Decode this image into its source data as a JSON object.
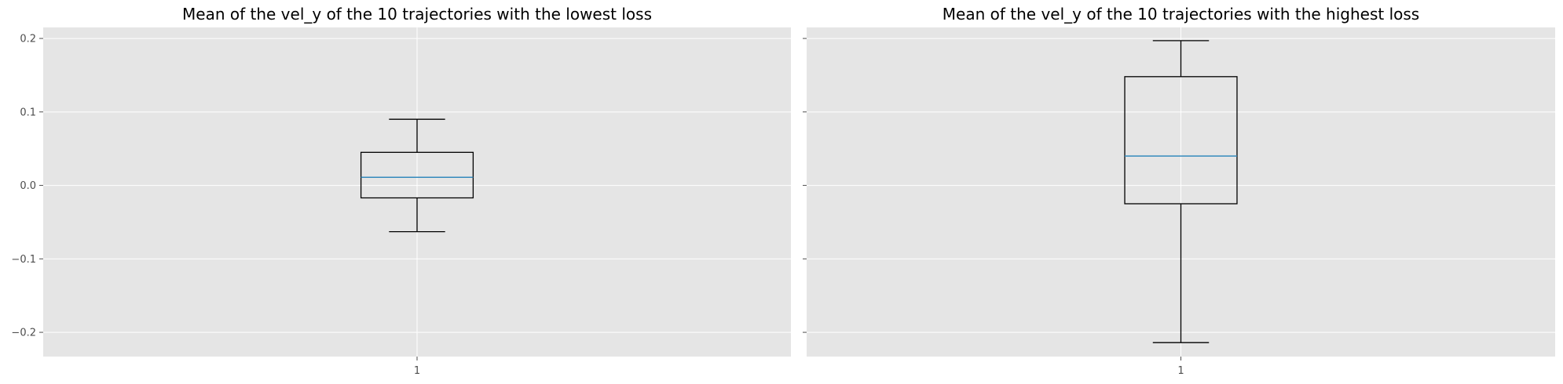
{
  "chart_data": [
    {
      "type": "box",
      "title": "Mean of the vel_y of the 10 trajectories with the lowest loss",
      "categories": [
        "1"
      ],
      "ylim": [
        -0.233,
        0.215
      ],
      "yticks": [
        -0.2,
        -0.1,
        0.0,
        0.1,
        0.2
      ],
      "ytick_labels": [
        "−0.2",
        "−0.1",
        "0.0",
        "0.1",
        "0.2"
      ],
      "show_ytick_labels": true,
      "grid": true,
      "boxes": [
        {
          "whisker_low": -0.063,
          "q1": -0.017,
          "median": 0.011,
          "q3": 0.045,
          "whisker_high": 0.09
        }
      ]
    },
    {
      "type": "box",
      "title": "Mean of the vel_y of the 10 trajectories with the highest loss",
      "categories": [
        "1"
      ],
      "ylim": [
        -0.233,
        0.215
      ],
      "yticks": [
        -0.2,
        -0.1,
        0.0,
        0.1,
        0.2
      ],
      "ytick_labels": [
        "−0.2",
        "−0.1",
        "0.0",
        "0.1",
        "0.2"
      ],
      "show_ytick_labels": false,
      "grid": true,
      "boxes": [
        {
          "whisker_low": -0.214,
          "q1": -0.025,
          "median": 0.04,
          "q3": 0.148,
          "whisker_high": 0.197
        }
      ]
    }
  ],
  "colors": {
    "background": "#ffffff",
    "axes_face": "#e5e5e5",
    "grid": "#ffffff",
    "box": "#000000",
    "median": "#348abd",
    "tick": "#4d4d4d",
    "title": "#000000"
  }
}
